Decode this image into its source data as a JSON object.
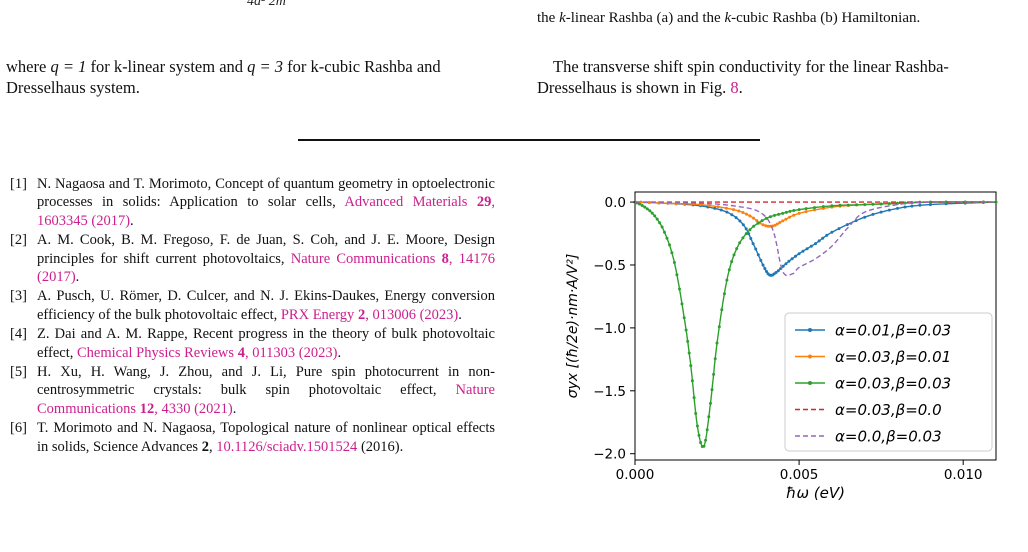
{
  "equation_fragment": "4a² 2m",
  "caption_tail": {
    "prefix": "the ",
    "k1": "k",
    "mid": "-linear Rashba (a) and the ",
    "k2": "k",
    "suffix": "-cubic Rashba (b) Hamiltonian."
  },
  "left_paragraph": {
    "p1": "where ",
    "m1": "q = 1",
    "p2": " for k-linear system and ",
    "m2": "q = 3",
    "p3": " for k-cubic Rashba and Dresselhaus system."
  },
  "right_paragraph": {
    "text": "The transverse shift spin conductivity for the linear Rashba-Dresselhaus is shown in Fig. ",
    "fig_ref": "8",
    "end": "."
  },
  "references": [
    {
      "num": "[1]",
      "authors": "N. Nagaosa and T. Morimoto, Concept of quantum geometry in optoelectronic processes in solids: Application to solar cells, ",
      "journal": "Advanced Materials ",
      "vol": "29",
      "rest": ", 1603345 (2017)",
      "end": "."
    },
    {
      "num": "[2]",
      "authors": "A. M. Cook, B. M. Fregoso, F. de Juan, S. Coh, and J. E. Moore, Design principles for shift current photovoltaics, ",
      "journal": "Nature Communications ",
      "vol": "8",
      "rest": ", 14176 (2017)",
      "end": "."
    },
    {
      "num": "[3]",
      "authors": "A. Pusch, U. Römer, D. Culcer, and N. J. Ekins-Daukes, Energy conversion efficiency of the bulk photovoltaic effect, ",
      "journal": "PRX Energy ",
      "vol": "2",
      "rest": ", 013006 (2023)",
      "end": "."
    },
    {
      "num": "[4]",
      "authors": "Z. Dai and A. M. Rappe, Recent progress in the theory of bulk photovoltaic effect, ",
      "journal": "Chemical Physics Reviews ",
      "vol": "4",
      "rest": ", 011303 (2023)",
      "end": "."
    },
    {
      "num": "[5]",
      "authors": "H. Xu, H. Wang, J. Zhou, and J. Li, Pure spin photocurrent in non-centrosymmetric crystals: bulk spin photovoltaic effect, ",
      "journal": "Nature Communications ",
      "vol": "12",
      "rest": ", 4330 (2021)",
      "end": "."
    },
    {
      "num": "[6]",
      "authors": "T. Morimoto and N. Nagaosa, Topological nature of nonlinear optical effects in solids, Science Advances ",
      "journal": "",
      "vol": "2",
      "rest": ", ",
      "link2": "10.1126/sciadv.1501524",
      "end": " (2016)."
    }
  ],
  "chart_data": {
    "type": "line",
    "xlabel": "ħω (eV)",
    "ylabel": "σyx [(ħ/2e)·nm·A/V²]",
    "xlim": [
      0.0,
      0.011
    ],
    "ylim": [
      -2.05,
      0.08
    ],
    "xticks": [
      0.0,
      0.005,
      0.01
    ],
    "xtick_labels": [
      "0.000",
      "0.005",
      "0.010"
    ],
    "yticks": [
      0.0,
      -0.5,
      -1.0,
      -1.5,
      -2.0
    ],
    "ytick_labels": [
      "0.0",
      "−0.5",
      "−1.0",
      "−1.5",
      "−2.0"
    ],
    "grid": false,
    "legend_position": "lower-right",
    "series": [
      {
        "name": "α=0.01,β=0.03",
        "color": "#1f77b4",
        "style": "line-dots",
        "x": [
          0.0,
          0.001,
          0.002,
          0.0028,
          0.0033,
          0.0036,
          0.0039,
          0.0041,
          0.0043,
          0.0046,
          0.005,
          0.0055,
          0.006,
          0.007,
          0.008,
          0.009,
          0.011
        ],
        "y": [
          0.0,
          -0.01,
          -0.03,
          -0.08,
          -0.18,
          -0.33,
          -0.5,
          -0.58,
          -0.56,
          -0.49,
          -0.41,
          -0.33,
          -0.24,
          -0.12,
          -0.05,
          -0.02,
          0.0
        ]
      },
      {
        "name": "α=0.03,β=0.01",
        "color": "#ff7f0e",
        "style": "line-dots",
        "x": [
          0.0,
          0.001,
          0.002,
          0.003,
          0.0035,
          0.0039,
          0.0042,
          0.0045,
          0.005,
          0.006,
          0.007,
          0.008,
          0.009,
          0.011
        ],
        "y": [
          0.0,
          -0.01,
          -0.02,
          -0.06,
          -0.11,
          -0.18,
          -0.19,
          -0.15,
          -0.09,
          -0.04,
          -0.02,
          -0.01,
          0.0,
          0.0
        ]
      },
      {
        "name": "α=0.03,β=0.03",
        "color": "#2ca02c",
        "style": "line-dots",
        "x": [
          0.0,
          0.0003,
          0.0006,
          0.0009,
          0.0012,
          0.0015,
          0.0017,
          0.0019,
          0.0021,
          0.0023,
          0.0025,
          0.0028,
          0.0031,
          0.0035,
          0.004,
          0.0045,
          0.005,
          0.006,
          0.007,
          0.008,
          0.009,
          0.011
        ],
        "y": [
          0.0,
          -0.04,
          -0.11,
          -0.24,
          -0.48,
          -0.92,
          -1.3,
          -1.78,
          -1.94,
          -1.6,
          -1.12,
          -0.62,
          -0.37,
          -0.22,
          -0.13,
          -0.09,
          -0.06,
          -0.03,
          -0.02,
          -0.01,
          0.0,
          0.0
        ]
      },
      {
        "name": "α=0.03,β=0.0",
        "color": "#d62728",
        "style": "dashed",
        "x": [
          0.0,
          0.011
        ],
        "y": [
          0.0,
          0.0
        ]
      },
      {
        "name": "α=0.0,β=0.03",
        "color": "#9467bd",
        "style": "dashed",
        "x": [
          0.0,
          0.002,
          0.003,
          0.0038,
          0.0042,
          0.0045,
          0.0048,
          0.005,
          0.0055,
          0.006,
          0.0065,
          0.007,
          0.008,
          0.009,
          0.011
        ],
        "y": [
          0.0,
          -0.01,
          -0.03,
          -0.08,
          -0.22,
          -0.55,
          -0.57,
          -0.52,
          -0.45,
          -0.35,
          -0.2,
          -0.08,
          -0.02,
          0.0,
          0.0
        ]
      }
    ]
  }
}
